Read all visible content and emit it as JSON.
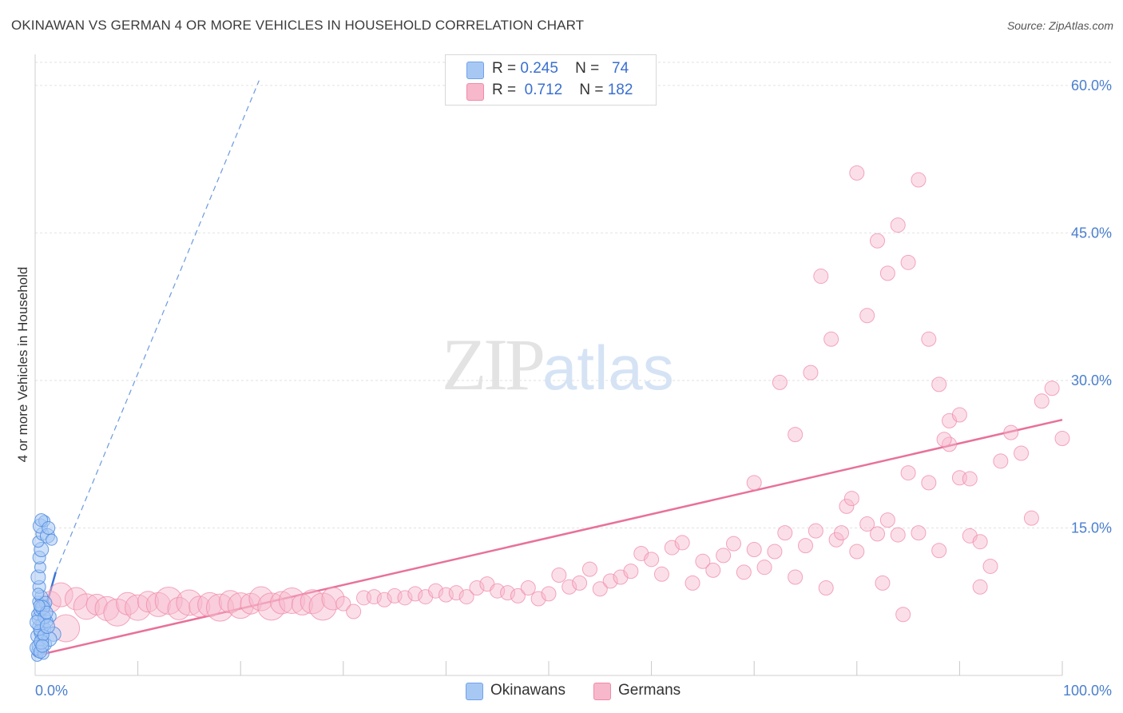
{
  "title": "OKINAWAN VS GERMAN 4 OR MORE VEHICLES IN HOUSEHOLD CORRELATION CHART",
  "source": "Source: ZipAtlas.com",
  "watermark": {
    "zip": "ZIP",
    "atlas": "atlas"
  },
  "legend": {
    "rows": [
      {
        "r_label": "R =",
        "r_value": "0.245",
        "n_label": "N =",
        "n_value": "74",
        "color": "#a8c8f4"
      },
      {
        "r_label": "R =",
        "r_value": "0.712",
        "n_label": "N =",
        "n_value": "182",
        "color": "#f7b8cb"
      }
    ]
  },
  "bottom_legend": [
    {
      "label": "Okinawans",
      "color": "#a8c8f4"
    },
    {
      "label": "Germans",
      "color": "#f7b8cb"
    }
  ],
  "chart_data": {
    "type": "scatter",
    "title": "OKINAWAN VS GERMAN 4 OR MORE VEHICLES IN HOUSEHOLD CORRELATION CHART",
    "ylabel": "4 or more Vehicles in Household",
    "xlabel": "",
    "xlim": [
      0,
      100
    ],
    "ylim": [
      0,
      63
    ],
    "x_tick_labels": [
      "0.0%",
      "100.0%"
    ],
    "y_ticks": [
      15,
      30,
      45,
      60
    ],
    "y_tick_labels": [
      "15.0%",
      "30.0%",
      "45.0%",
      "60.0%"
    ],
    "grid": true,
    "legend_position": "top-center",
    "colors": {
      "okinawans": "#6fa3ea",
      "germans": "#f08aa8",
      "okinawans_line": "#3b74d6",
      "germans_line": "#e8719a"
    },
    "series": [
      {
        "name": "Okinawans",
        "r": 0.245,
        "n": 74,
        "trend": {
          "x": [
            0.0,
            2.0
          ],
          "y": [
            3.0,
            10.5
          ]
        },
        "trend_extended": {
          "x": [
            2.0,
            21.8
          ],
          "y": [
            10.5,
            60.5
          ]
        },
        "points": [
          [
            0.2,
            2.0
          ],
          [
            0.3,
            2.5
          ],
          [
            0.4,
            3.0
          ],
          [
            0.5,
            3.6
          ],
          [
            0.2,
            4.0
          ],
          [
            0.6,
            4.4
          ],
          [
            0.3,
            5.0
          ],
          [
            0.7,
            5.3
          ],
          [
            0.4,
            5.8
          ],
          [
            0.2,
            6.2
          ],
          [
            0.5,
            6.6
          ],
          [
            0.8,
            7.0
          ],
          [
            0.3,
            7.5
          ],
          [
            0.6,
            8.0
          ],
          [
            0.9,
            3.2
          ],
          [
            1.0,
            4.8
          ],
          [
            0.4,
            9.0
          ],
          [
            0.3,
            10.0
          ],
          [
            0.5,
            11.0
          ],
          [
            0.4,
            12.0
          ],
          [
            0.6,
            12.8
          ],
          [
            0.3,
            13.6
          ],
          [
            0.7,
            14.4
          ],
          [
            0.5,
            15.2
          ],
          [
            0.9,
            15.7
          ],
          [
            0.6,
            15.8
          ],
          [
            1.2,
            14.2
          ],
          [
            1.6,
            13.8
          ],
          [
            1.3,
            15.0
          ],
          [
            1.8,
            4.2
          ],
          [
            1.5,
            6.0
          ],
          [
            1.1,
            5.5
          ],
          [
            0.2,
            2.8
          ],
          [
            0.8,
            2.2
          ],
          [
            1.0,
            7.4
          ],
          [
            0.7,
            6.9
          ],
          [
            0.4,
            4.6
          ],
          [
            0.9,
            5.9
          ],
          [
            1.4,
            3.7
          ],
          [
            0.3,
            8.3
          ],
          [
            0.5,
            2.4
          ],
          [
            0.6,
            3.4
          ],
          [
            0.8,
            4.1
          ],
          [
            1.1,
            6.4
          ],
          [
            0.2,
            5.4
          ],
          [
            0.4,
            7.1
          ],
          [
            0.7,
            3.0
          ],
          [
            1.2,
            5.0
          ]
        ]
      },
      {
        "name": "Germans",
        "r": 0.712,
        "n": 182,
        "trend": {
          "x": [
            0.0,
            100.0
          ],
          "y": [
            2.0,
            26.0
          ]
        },
        "points": [
          [
            1.5,
            7.5
          ],
          [
            2.5,
            8.2
          ],
          [
            3.0,
            4.8
          ],
          [
            4.0,
            7.8
          ],
          [
            5.0,
            7.0
          ],
          [
            6.0,
            7.2
          ],
          [
            7.0,
            6.8
          ],
          [
            8.0,
            6.4
          ],
          [
            9.0,
            7.3
          ],
          [
            10.0,
            6.9
          ],
          [
            11.0,
            7.5
          ],
          [
            12.0,
            7.2
          ],
          [
            13.0,
            7.6
          ],
          [
            14.0,
            6.8
          ],
          [
            15.0,
            7.4
          ],
          [
            16.0,
            7.0
          ],
          [
            17.0,
            7.2
          ],
          [
            18.0,
            6.9
          ],
          [
            19.0,
            7.5
          ],
          [
            20.0,
            7.1
          ],
          [
            21.0,
            7.3
          ],
          [
            22.0,
            7.8
          ],
          [
            23.0,
            7.0
          ],
          [
            24.0,
            7.4
          ],
          [
            25.0,
            7.6
          ],
          [
            26.0,
            7.2
          ],
          [
            27.0,
            7.5
          ],
          [
            28.0,
            7.0
          ],
          [
            29.0,
            7.8
          ],
          [
            30.0,
            7.3
          ],
          [
            31.0,
            6.5
          ],
          [
            32.0,
            7.9
          ],
          [
            33.0,
            8.0
          ],
          [
            34.0,
            7.7
          ],
          [
            35.0,
            8.1
          ],
          [
            36.0,
            7.9
          ],
          [
            37.0,
            8.3
          ],
          [
            38.0,
            8.0
          ],
          [
            39.0,
            8.6
          ],
          [
            40.0,
            8.2
          ],
          [
            41.0,
            8.4
          ],
          [
            42.0,
            8.0
          ],
          [
            43.0,
            8.9
          ],
          [
            44.0,
            9.3
          ],
          [
            45.0,
            8.6
          ],
          [
            46.0,
            8.4
          ],
          [
            47.0,
            8.1
          ],
          [
            48.0,
            8.9
          ],
          [
            49.0,
            7.8
          ],
          [
            50.0,
            8.3
          ],
          [
            51.0,
            10.2
          ],
          [
            52.0,
            9.0
          ],
          [
            53.0,
            9.4
          ],
          [
            54.0,
            10.8
          ],
          [
            55.0,
            8.8
          ],
          [
            56.0,
            9.6
          ],
          [
            57.0,
            10.0
          ],
          [
            58.0,
            10.6
          ],
          [
            59.0,
            12.4
          ],
          [
            60.0,
            11.8
          ],
          [
            61.0,
            10.3
          ],
          [
            62.0,
            13.0
          ],
          [
            63.0,
            13.5
          ],
          [
            64.0,
            9.4
          ],
          [
            65.0,
            11.6
          ],
          [
            66.0,
            10.7
          ],
          [
            67.0,
            12.2
          ],
          [
            68.0,
            13.4
          ],
          [
            69.0,
            10.5
          ],
          [
            70.0,
            12.8
          ],
          [
            71.0,
            11.0
          ],
          [
            72.0,
            12.6
          ],
          [
            73.0,
            14.5
          ],
          [
            74.0,
            10.0
          ],
          [
            75.0,
            13.2
          ],
          [
            76.0,
            14.7
          ],
          [
            77.0,
            8.9
          ],
          [
            78.0,
            13.8
          ],
          [
            79.0,
            17.2
          ],
          [
            80.0,
            12.6
          ],
          [
            81.0,
            15.4
          ],
          [
            82.0,
            14.4
          ],
          [
            83.0,
            15.8
          ],
          [
            84.0,
            14.3
          ],
          [
            85.0,
            20.6
          ],
          [
            86.0,
            14.5
          ],
          [
            87.0,
            19.6
          ],
          [
            88.0,
            12.7
          ],
          [
            89.0,
            25.9
          ],
          [
            90.0,
            26.5
          ],
          [
            91.0,
            14.2
          ],
          [
            92.0,
            13.6
          ],
          [
            93.0,
            11.1
          ],
          [
            94.0,
            21.8
          ],
          [
            95.0,
            24.7
          ],
          [
            96.0,
            22.6
          ],
          [
            97.0,
            16.0
          ],
          [
            98.0,
            27.9
          ],
          [
            99.0,
            29.2
          ],
          [
            100.0,
            24.1
          ],
          [
            72.5,
            29.8
          ],
          [
            74.0,
            24.5
          ],
          [
            75.5,
            30.8
          ],
          [
            76.5,
            40.6
          ],
          [
            77.5,
            34.2
          ],
          [
            78.5,
            14.5
          ],
          [
            79.5,
            18.0
          ],
          [
            80.0,
            51.1
          ],
          [
            81.0,
            36.6
          ],
          [
            82.0,
            44.2
          ],
          [
            83.0,
            40.9
          ],
          [
            84.0,
            45.8
          ],
          [
            85.0,
            42.0
          ],
          [
            86.0,
            50.4
          ],
          [
            87.0,
            34.2
          ],
          [
            88.0,
            29.6
          ],
          [
            89.0,
            23.5
          ],
          [
            90.0,
            20.1
          ],
          [
            91.0,
            20.0
          ],
          [
            92.0,
            9.0
          ],
          [
            84.5,
            6.2
          ],
          [
            88.5,
            24.0
          ],
          [
            82.5,
            9.4
          ],
          [
            70.0,
            19.6
          ]
        ]
      }
    ]
  }
}
